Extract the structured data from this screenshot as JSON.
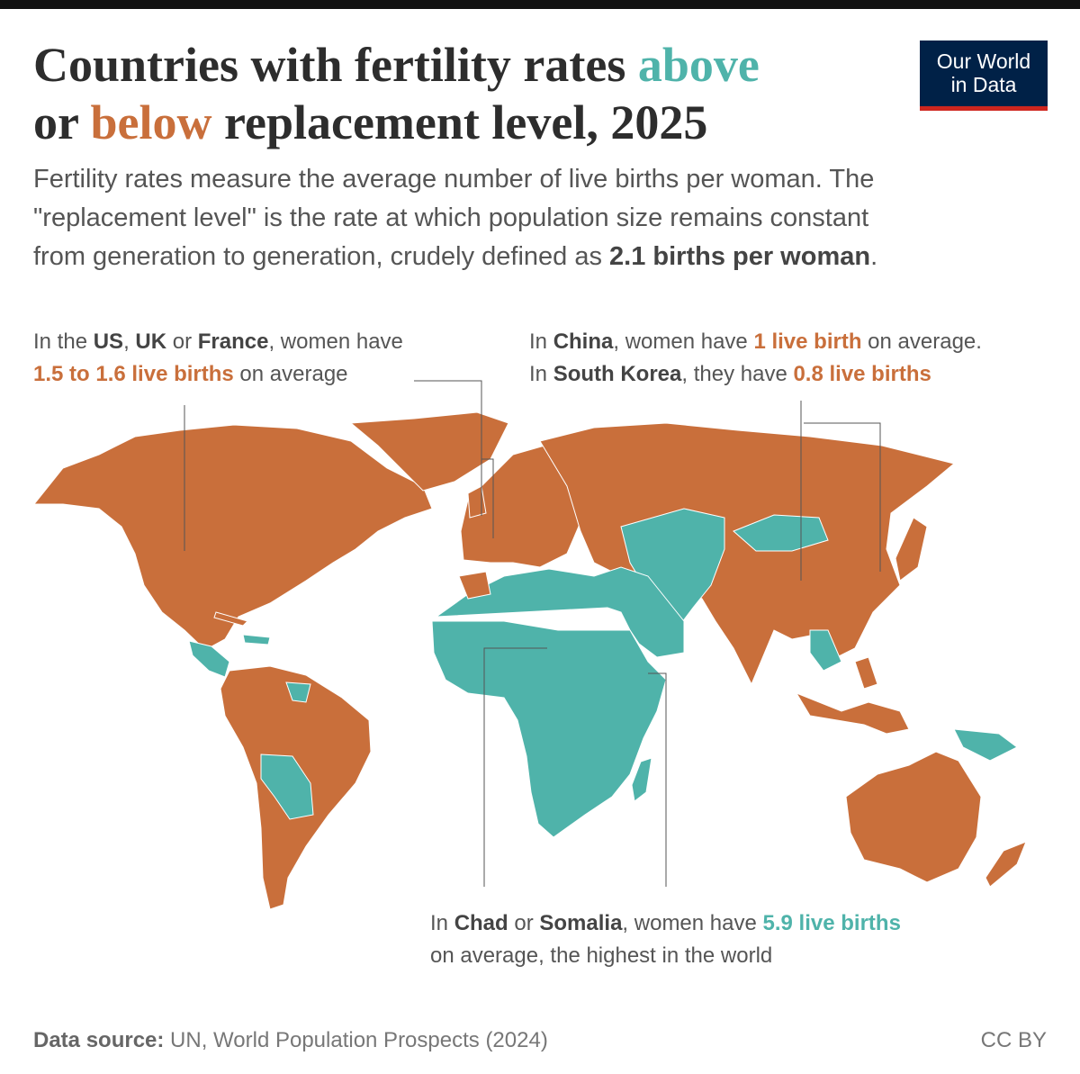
{
  "logo": [
    "Our World",
    "in Data"
  ],
  "title": [
    "Countries with fertility rates ",
    "above",
    "or ",
    "below",
    " replacement level, 2025"
  ],
  "subtitle": [
    "Fertility rates measure the average number of live births per woman. The",
    "\"replacement level\" is the rate at which population size remains constant",
    "from generation to generation, crudely defined as ",
    "2.1 births per woman",
    "."
  ],
  "annotations": [
    {
      "lines": [
        [
          "In the ",
          "US",
          ", ",
          "UK",
          " or ",
          "France",
          ", women have"
        ],
        [
          "1.5 to 1.6 live births",
          " on average"
        ]
      ]
    },
    {
      "lines": [
        [
          "In ",
          "China",
          ", women have ",
          "1 live birth",
          " on average."
        ],
        [
          "In ",
          "South Korea",
          ", they have ",
          "0.8 live births"
        ]
      ]
    },
    {
      "lines": [
        [
          "In ",
          "Chad",
          " or ",
          "Somalia",
          ", women have ",
          "5.9 live births"
        ],
        [
          "on average, the highest in the world"
        ]
      ]
    }
  ],
  "source": [
    "Data source:",
    " UN, World Population Prospects (2024)"
  ],
  "license": "CC BY"
}
